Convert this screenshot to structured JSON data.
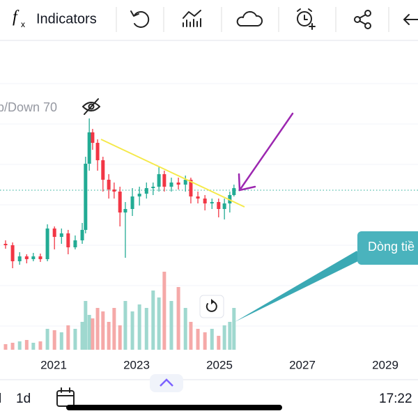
{
  "toolbar": {
    "formula_icon": [
      "f",
      "x"
    ],
    "indicators": "Indicators"
  },
  "legend": "p/Down 70",
  "callout": "Dòng tiề",
  "bottom_bar": {
    "interval_partial": "l",
    "interval": "1d",
    "clock": "17:22"
  },
  "chart_data": {
    "type": "candlestick",
    "x": [
      2019.84,
      2020.01,
      2020.18,
      2020.35,
      2020.51,
      2020.68,
      2020.85,
      2021.02,
      2021.19,
      2021.35,
      2021.52,
      2021.69,
      2021.77,
      2021.86,
      2021.94,
      2022.06,
      2022.19,
      2022.33,
      2022.46,
      2022.6,
      2022.73,
      2022.9,
      2023.07,
      2023.24,
      2023.4,
      2023.54,
      2023.67,
      2023.84,
      2024.01,
      2024.18,
      2024.31,
      2024.48,
      2024.65,
      2024.82,
      2024.98,
      2025.12,
      2025.25,
      2025.35
    ],
    "open": [
      155,
      153,
      130,
      137,
      133,
      137,
      133,
      177,
      165,
      170,
      150,
      160,
      175,
      270,
      315,
      300,
      275,
      247,
      233,
      230,
      200,
      205,
      223,
      227,
      235,
      237,
      255,
      237,
      243,
      240,
      247,
      223,
      220,
      213,
      215,
      205,
      213,
      225
    ],
    "high": [
      160,
      157,
      143,
      140,
      142,
      141,
      183,
      180,
      177,
      175,
      167,
      185,
      280,
      335,
      320,
      305,
      280,
      255,
      243,
      237,
      215,
      235,
      237,
      243,
      243,
      265,
      260,
      250,
      250,
      253,
      250,
      230,
      225,
      220,
      220,
      220,
      230,
      240
    ],
    "low": [
      148,
      120,
      125,
      127,
      130,
      129,
      130,
      147,
      155,
      140,
      147,
      155,
      170,
      260,
      290,
      260,
      230,
      220,
      220,
      180,
      135,
      195,
      210,
      220,
      225,
      230,
      230,
      230,
      233,
      230,
      213,
      213,
      203,
      205,
      193,
      190,
      200,
      223
    ],
    "close": [
      153,
      130,
      137,
      133,
      137,
      133,
      177,
      165,
      170,
      150,
      160,
      175,
      270,
      315,
      300,
      275,
      247,
      233,
      230,
      200,
      205,
      223,
      227,
      235,
      237,
      255,
      237,
      243,
      240,
      247,
      223,
      220,
      213,
      215,
      205,
      213,
      225,
      235
    ],
    "volume": [
      8,
      10,
      12,
      14,
      10,
      12,
      30,
      28,
      25,
      35,
      30,
      40,
      70,
      50,
      45,
      60,
      55,
      40,
      60,
      35,
      70,
      55,
      65,
      60,
      85,
      75,
      112,
      70,
      90,
      60,
      40,
      30,
      25,
      30,
      20,
      35,
      40,
      60
    ],
    "xlim": [
      2019.706,
      2029.79
    ],
    "xticks": [
      2021,
      2023,
      2025,
      2027,
      2029
    ],
    "ylim": [
      0,
      443
    ],
    "volume_ylim": [
      0,
      120
    ],
    "up_color": "#22ab94",
    "down_color": "#f23645",
    "volume_up_color": "#9fd8cf",
    "volume_down_color": "#f5a9a8"
  }
}
